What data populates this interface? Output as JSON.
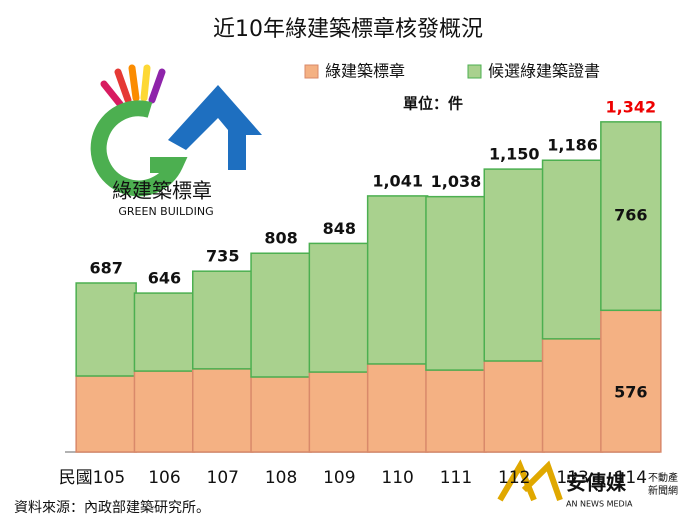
{
  "chart_data": {
    "type": "stacked-bar",
    "title": "近10年綠建築標章核發概況",
    "unit": "單位：件",
    "categories": [
      "民國105",
      "106",
      "107",
      "108",
      "109",
      "110",
      "111",
      "112",
      "113",
      "114"
    ],
    "series": [
      {
        "name": "綠建築標章",
        "color": "#f4b183",
        "values": [
          309,
          329,
          338,
          305,
          325,
          358,
          333,
          370,
          460,
          576
        ],
        "value_labels": [
          null,
          null,
          null,
          null,
          null,
          null,
          null,
          null,
          null,
          "576"
        ]
      },
      {
        "name": "候選綠建築證書",
        "color": "#a9d18e",
        "values": [
          378,
          317,
          397,
          503,
          523,
          683,
          705,
          780,
          726,
          766
        ],
        "value_labels": [
          null,
          null,
          null,
          null,
          null,
          null,
          null,
          null,
          null,
          "766"
        ]
      }
    ],
    "totals": {
      "values": [
        687,
        646,
        735,
        808,
        848,
        1041,
        1038,
        1150,
        1186,
        1342
      ],
      "value_labels": [
        "687",
        "646",
        "735",
        "808",
        "848",
        "1,041",
        "1,038",
        "1,150",
        "1,186",
        "1,342"
      ]
    },
    "ylim": [
      0,
      1500
    ],
    "grid": false,
    "legend": "top"
  },
  "source": "資料來源：內政部建築研究所。",
  "logo": {
    "title": "綠建築標章",
    "subtitle": "GREEN BUILDING"
  },
  "watermark": {
    "name": "安傳媒",
    "english": "AN NEWS MEDIA",
    "tag1": "不動產",
    "tag2": "新聞網"
  }
}
